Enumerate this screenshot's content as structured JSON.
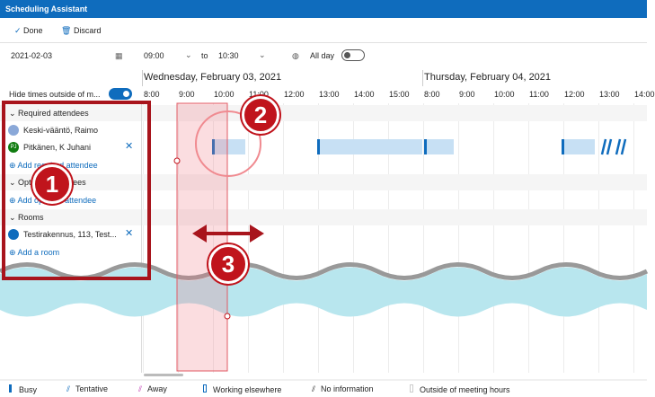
{
  "header": {
    "title": "Scheduling Assistant"
  },
  "toolbar": {
    "done": "Done",
    "discard": "Discard"
  },
  "date_row": {
    "date": "2021-02-03",
    "start": "09:00",
    "to": "to",
    "end": "10:30",
    "all_day": "All day"
  },
  "days": [
    "Wednesday, February 03, 2021",
    "Thursday, February 04, 2021"
  ],
  "hide_times": "Hide times outside of m...",
  "times": [
    "8:00",
    "9:00",
    "10:00",
    "11:00",
    "12:00",
    "13:00",
    "14:00",
    "15:00",
    "8:00",
    "9:00",
    "10:00",
    "11:00",
    "12:00",
    "13:00",
    "14:00"
  ],
  "attendees": {
    "required_heading": "Required attendees",
    "required": [
      {
        "name": "Keski-vääntö, Raimo"
      },
      {
        "initials": "PJ",
        "name": "Pitkänen, K Juhani"
      }
    ],
    "add_required": "Add required attendee",
    "optional_heading": "Optional attendees",
    "add_optional": "Add optional attendee",
    "rooms_heading": "Rooms",
    "rooms": [
      "Testirakennus, 113, Test..."
    ],
    "add_room": "Add a room"
  },
  "annotations": [
    "1",
    "2",
    "3"
  ],
  "legend": [
    "Busy",
    "Tentative",
    "Away",
    "Working elsewhere",
    "No information",
    "Outside of meeting hours"
  ]
}
